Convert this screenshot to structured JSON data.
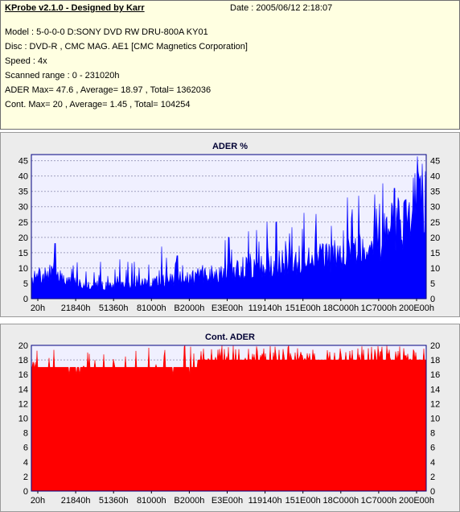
{
  "header": {
    "app_title": "KProbe v2.1.0 - Designed by Karr",
    "date": "Date : 2005/06/12 2:18:07",
    "model": "Model : 5-0-0-0 D:SONY    DVD RW DRU-800A  KY01",
    "disc": "Disc : DVD-R , CMC MAG. AE1 [CMC Magnetics Corporation]",
    "speed": "Speed : 4x",
    "scanned_range": "Scanned range : 0 - 231020h",
    "ader_stats": "ADER Max= 47.6 , Average= 18.97 , Total= 1362036",
    "cont_stats": "Cont. Max= 20 , Average= 1.45 , Total= 104254"
  },
  "colors": {
    "info_bg": "#ffffe1",
    "panel_bg": "#ececec",
    "plot_bg": "#f0f0ff",
    "ader_fill": "#0000ff",
    "cont_fill": "#ff0000",
    "grid": "#a0a0c0"
  },
  "chart_data": [
    {
      "type": "area",
      "title": "ADER %",
      "x_tick_labels": [
        "20h",
        "21840h",
        "51360h",
        "81000h",
        "B2000h",
        "E3E00h",
        "119140h",
        "151E00h",
        "18C000h",
        "1C7000h",
        "200E00h"
      ],
      "y_ticks": [
        0,
        5,
        10,
        15,
        20,
        25,
        30,
        35,
        40,
        45
      ],
      "ylim": [
        0,
        47
      ],
      "grid": true,
      "baseline_profile": {
        "x_fraction": [
          0,
          0.05,
          0.1,
          0.15,
          0.2,
          0.25,
          0.3,
          0.35,
          0.4,
          0.45,
          0.5,
          0.55,
          0.6,
          0.65,
          0.7,
          0.75,
          0.8,
          0.85,
          0.9,
          0.95,
          1
        ],
        "values": [
          7,
          9,
          6,
          5,
          4.5,
          5,
          6,
          6.5,
          7.5,
          8.5,
          10,
          11,
          12,
          13,
          14,
          15,
          17,
          19,
          23,
          29,
          38
        ]
      },
      "spikes": [
        {
          "x_fraction": 0.06,
          "value": 18
        },
        {
          "x_fraction": 0.33,
          "value": 17
        },
        {
          "x_fraction": 0.37,
          "value": 14
        },
        {
          "x_fraction": 0.5,
          "value": 20
        },
        {
          "x_fraction": 0.55,
          "value": 22
        },
        {
          "x_fraction": 0.62,
          "value": 25
        },
        {
          "x_fraction": 0.69,
          "value": 28
        },
        {
          "x_fraction": 0.8,
          "value": 33
        },
        {
          "x_fraction": 0.87,
          "value": 34
        },
        {
          "x_fraction": 0.92,
          "value": 36
        },
        {
          "x_fraction": 0.99,
          "value": 44
        }
      ]
    },
    {
      "type": "area",
      "title": "Cont. ADER",
      "x_tick_labels": [
        "20h",
        "21840h",
        "51360h",
        "81000h",
        "B2000h",
        "E3E00h",
        "119140h",
        "151E00h",
        "18C000h",
        "1C7000h",
        "200E00h"
      ],
      "y_ticks": [
        0,
        2,
        4,
        6,
        8,
        10,
        12,
        14,
        16,
        18,
        20
      ],
      "ylim": [
        0,
        20
      ],
      "grid": true,
      "baseline_value": 17,
      "upper_band_start_fraction": 0.42,
      "upper_band_values": [
        18,
        20
      ]
    }
  ]
}
